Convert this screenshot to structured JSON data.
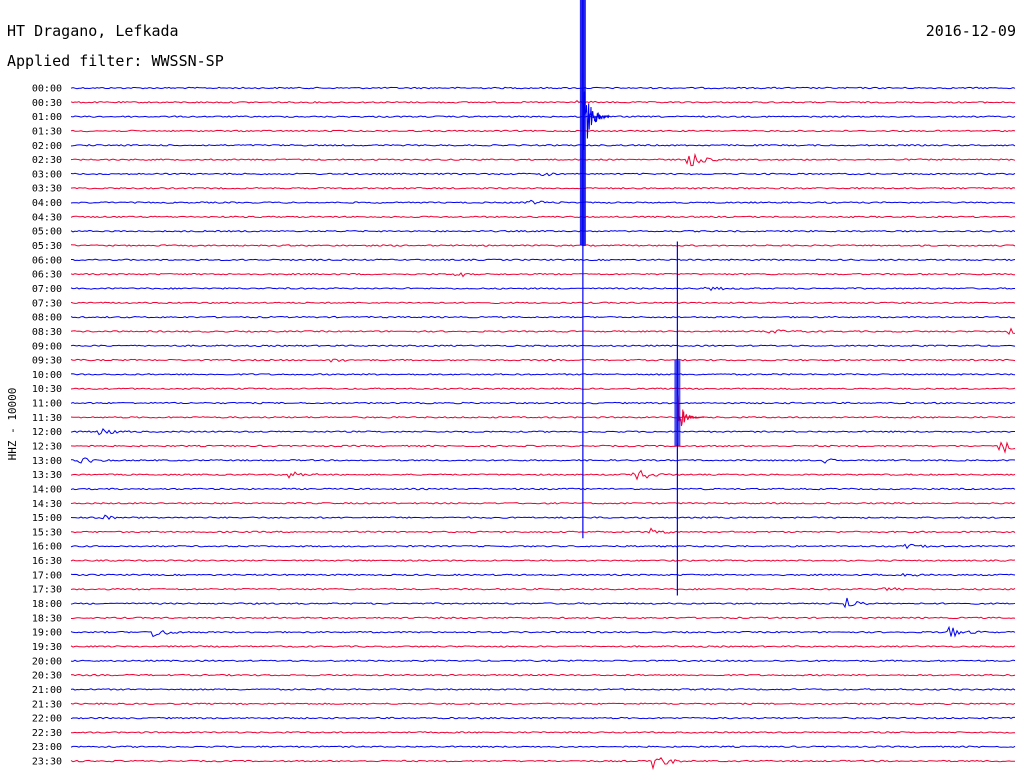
{
  "header": {
    "station": "HT Dragano, Lefkada",
    "date": "2016-12-09",
    "filter": "Applied filter: WWSSN-SP",
    "channel_label": "HHZ - 10000"
  },
  "colors": {
    "blue": "#0000ee",
    "red": "#ee0033",
    "text": "#000000"
  },
  "chart_data": {
    "type": "line",
    "title": "HT Dragano, Lefkada",
    "subtitle": "Applied filter: WWSSN-SP",
    "ylabel": "HHZ - 10000",
    "rows": [
      "00:00",
      "00:30",
      "01:00",
      "01:30",
      "02:00",
      "02:30",
      "03:00",
      "03:30",
      "04:00",
      "04:30",
      "05:00",
      "05:30",
      "06:00",
      "06:30",
      "07:00",
      "07:30",
      "08:00",
      "08:30",
      "09:00",
      "09:30",
      "10:00",
      "10:30",
      "11:00",
      "11:30",
      "12:00",
      "12:30",
      "13:00",
      "13:30",
      "14:00",
      "14:30",
      "15:00",
      "15:30",
      "16:00",
      "16:30",
      "17:00",
      "17:30",
      "18:00",
      "18:30",
      "19:00",
      "19:30",
      "20:00",
      "20:30",
      "21:00",
      "21:30",
      "22:00",
      "22:30",
      "23:00",
      "23:30"
    ],
    "row_minutes": 30,
    "x_range_minutes": [
      0,
      30
    ],
    "events": [
      {
        "row": 1,
        "minute": 16.0,
        "amp": 0.6
      },
      {
        "row": 5,
        "minute": 19.6,
        "amp": 1.6
      },
      {
        "row": 6,
        "minute": 14.9,
        "amp": 0.5
      },
      {
        "row": 8,
        "minute": 14.5,
        "amp": 0.6
      },
      {
        "row": 13,
        "minute": 12.2,
        "amp": 0.6
      },
      {
        "row": 14,
        "minute": 20.2,
        "amp": 0.5
      },
      {
        "row": 17,
        "minute": 22.2,
        "amp": 0.6
      },
      {
        "row": 17,
        "minute": 29.8,
        "amp": 0.8
      },
      {
        "row": 19,
        "minute": 8.2,
        "amp": 0.5
      },
      {
        "row": 24,
        "minute": 0.9,
        "amp": 0.8
      },
      {
        "row": 25,
        "minute": 29.5,
        "amp": 1.6
      },
      {
        "row": 26,
        "minute": 0.3,
        "amp": 0.8
      },
      {
        "row": 26,
        "minute": 23.9,
        "amp": 0.8
      },
      {
        "row": 27,
        "minute": 6.9,
        "amp": 0.7
      },
      {
        "row": 27,
        "minute": 17.9,
        "amp": 1.4
      },
      {
        "row": 30,
        "minute": 1.0,
        "amp": 0.5
      },
      {
        "row": 31,
        "minute": 18.4,
        "amp": 0.6
      },
      {
        "row": 32,
        "minute": 26.5,
        "amp": 0.6
      },
      {
        "row": 34,
        "minute": 26.4,
        "amp": 0.5
      },
      {
        "row": 35,
        "minute": 25.8,
        "amp": 0.6
      },
      {
        "row": 36,
        "minute": 24.6,
        "amp": 1.0
      },
      {
        "row": 38,
        "minute": 2.6,
        "amp": 1.1
      },
      {
        "row": 38,
        "minute": 27.9,
        "amp": 1.2
      },
      {
        "row": 47,
        "minute": 18.5,
        "amp": 1.6
      }
    ],
    "major_events": [
      {
        "start_row": 0,
        "end_row": 32,
        "minute": 16.25,
        "peak_row": 2,
        "amp": 8.0
      },
      {
        "start_row": 11,
        "end_row": 36,
        "minute": 19.25,
        "peak_row": 23,
        "amp": 4.5
      }
    ]
  }
}
